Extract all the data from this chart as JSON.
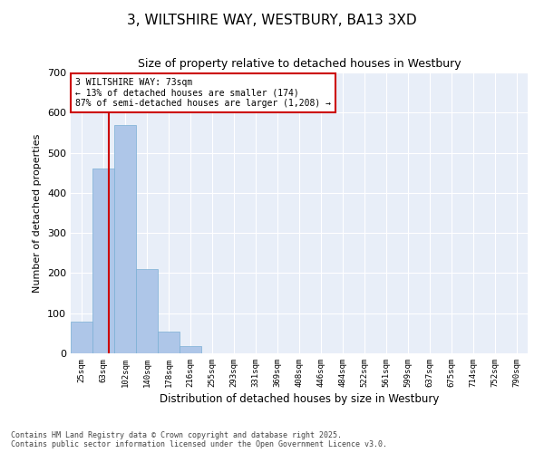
{
  "title_line1": "3, WILTSHIRE WAY, WESTBURY, BA13 3XD",
  "title_line2": "Size of property relative to detached houses in Westbury",
  "xlabel": "Distribution of detached houses by size in Westbury",
  "ylabel": "Number of detached properties",
  "bar_color": "#aec6e8",
  "bar_edgecolor": "#7aafd4",
  "background_color": "#e8eef8",
  "categories": [
    "25sqm",
    "63sqm",
    "102sqm",
    "140sqm",
    "178sqm",
    "216sqm",
    "255sqm",
    "293sqm",
    "331sqm",
    "369sqm",
    "408sqm",
    "446sqm",
    "484sqm",
    "522sqm",
    "561sqm",
    "599sqm",
    "637sqm",
    "675sqm",
    "714sqm",
    "752sqm",
    "790sqm"
  ],
  "values": [
    80,
    460,
    570,
    210,
    55,
    18,
    1,
    0,
    0,
    1,
    1,
    0,
    0,
    0,
    0,
    0,
    0,
    0,
    0,
    0,
    0
  ],
  "property_line_x": 1.26,
  "property_line_label": "3 WILTSHIRE WAY: 73sqm",
  "annotation_line2": "← 13% of detached houses are smaller (174)",
  "annotation_line3": "87% of semi-detached houses are larger (1,208) →",
  "annotation_box_color": "#cc0000",
  "ylim": [
    0,
    700
  ],
  "yticks": [
    0,
    100,
    200,
    300,
    400,
    500,
    600,
    700
  ],
  "footnote_line1": "Contains HM Land Registry data © Crown copyright and database right 2025.",
  "footnote_line2": "Contains public sector information licensed under the Open Government Licence v3.0.",
  "figsize": [
    6.0,
    5.0
  ],
  "dpi": 100
}
